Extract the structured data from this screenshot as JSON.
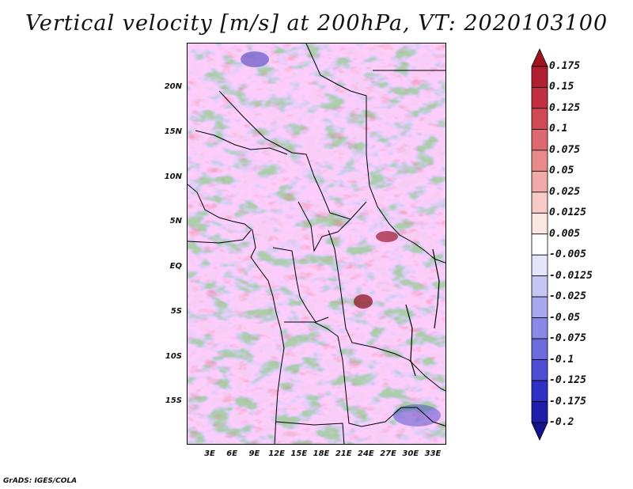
{
  "title": "Vertical velocity [m/s] at 200hPa, VT: 2020103100",
  "map": {
    "variable": "Vertical velocity",
    "units": "m/s",
    "level": "200hPa",
    "valid_time": "2020103100",
    "lat_labels": [
      "20N",
      "15N",
      "10N",
      "5N",
      "EQ",
      "5S",
      "10S",
      "15S"
    ],
    "lon_labels": [
      "3E",
      "6E",
      "9E",
      "12E",
      "15E",
      "18E",
      "21E",
      "24E",
      "27E",
      "30E",
      "33E"
    ],
    "lat_values": [
      20,
      15,
      10,
      5,
      0,
      -5,
      -10,
      -15
    ],
    "lon_values": [
      3,
      6,
      9,
      12,
      15,
      18,
      21,
      24,
      27,
      30,
      33
    ]
  },
  "colorbar": {
    "labels": [
      "0.175",
      "0.15",
      "0.125",
      "0.1",
      "0.075",
      "0.05",
      "0.025",
      "0.0125",
      "0.005",
      "-0.005",
      "-0.0125",
      "-0.025",
      "-0.05",
      "-0.075",
      "-0.1",
      "-0.125",
      "-0.175",
      "-0.2"
    ],
    "colors": [
      "#a01420",
      "#b02030",
      "#c03040",
      "#d04a55",
      "#dc6a70",
      "#e68a8c",
      "#f0aaa8",
      "#f6cac6",
      "#fbe6e2",
      "#ffffff",
      "#e4e4fa",
      "#c6c6f4",
      "#a8a8ee",
      "#8a8ae6",
      "#6c6cde",
      "#4e4ed4",
      "#3030c4",
      "#1e1eaa",
      "#14148c"
    ]
  },
  "footer": "GrADS: IGES/COLA"
}
